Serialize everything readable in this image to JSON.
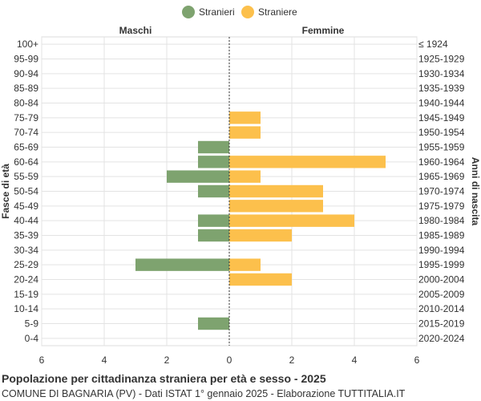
{
  "chart_data": {
    "type": "bar",
    "orientation": "horizontal-pyramid",
    "title": "Popolazione per cittadinanza straniera per età e sesso - 2025",
    "subtitle": "COMUNE DI BAGNARIA (PV) - Dati ISTAT 1° gennaio 2025 - Elaborazione TUTTITALIA.IT",
    "left_header": "Maschi",
    "right_header": "Femmine",
    "ylabel_left": "Fasce di età",
    "ylabel_right": "Anni di nascita",
    "xlim": [
      -6,
      6
    ],
    "x_ticks": [
      -6,
      -4,
      -2,
      0,
      2,
      4,
      6
    ],
    "x_tick_labels": [
      "6",
      "4",
      "2",
      "0",
      "2",
      "4",
      "6"
    ],
    "grid": true,
    "legend_position": "top-center",
    "categories": [
      "100+",
      "95-99",
      "90-94",
      "85-89",
      "80-84",
      "75-79",
      "70-74",
      "65-69",
      "60-64",
      "55-59",
      "50-54",
      "45-49",
      "40-44",
      "35-39",
      "30-34",
      "25-29",
      "20-24",
      "15-19",
      "10-14",
      "5-9",
      "0-4"
    ],
    "birth_years": [
      "≤ 1924",
      "1925-1929",
      "1930-1934",
      "1935-1939",
      "1940-1944",
      "1945-1949",
      "1950-1954",
      "1955-1959",
      "1960-1964",
      "1965-1969",
      "1970-1974",
      "1975-1979",
      "1980-1984",
      "1985-1989",
      "1990-1994",
      "1995-1999",
      "2000-2004",
      "2005-2009",
      "2010-2014",
      "2015-2019",
      "2020-2024"
    ],
    "series": [
      {
        "name": "Stranieri",
        "color": "#7ea36f",
        "values": [
          0,
          0,
          0,
          0,
          0,
          0,
          0,
          1,
          1,
          2,
          1,
          0,
          1,
          1,
          0,
          3,
          0,
          0,
          0,
          1,
          0
        ]
      },
      {
        "name": "Straniere",
        "color": "#fcc04c",
        "values": [
          0,
          0,
          0,
          0,
          0,
          1,
          1,
          0,
          5,
          1,
          3,
          3,
          4,
          2,
          0,
          1,
          2,
          0,
          0,
          0,
          0
        ]
      }
    ]
  }
}
